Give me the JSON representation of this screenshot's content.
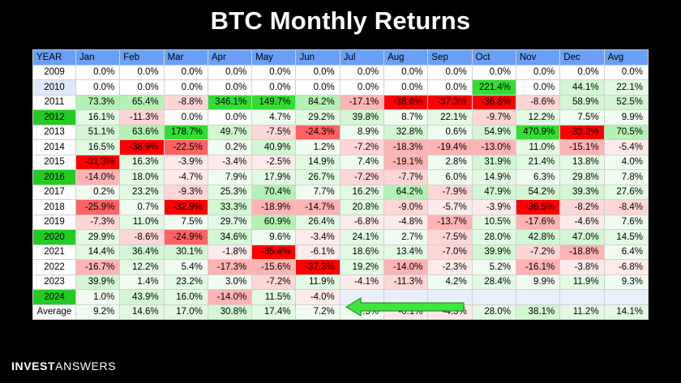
{
  "title": "BTC Monthly Returns",
  "footer": {
    "bold": "INVEST",
    "normal": "ANSWERS"
  },
  "colors": {
    "header_bg": "#6aa0f7",
    "highlight_year": "#22cc22",
    "light_blue_year": "#dde9f8",
    "empty_cell": "#e9f0fb",
    "arrow": "#3ee63e"
  },
  "chart_data": {
    "type": "table",
    "columns": [
      "YEAR",
      "Jan",
      "Feb",
      "Mar",
      "Apr",
      "May",
      "Jun",
      "Jul",
      "Aug",
      "Sep",
      "Oct",
      "Nov",
      "Dec",
      "Avg"
    ],
    "rows": [
      {
        "year": "2009",
        "year_style": "plain",
        "cells": [
          "0.0%",
          "0.0%",
          "0.0%",
          "0.0%",
          "0.0%",
          "0.0%",
          "0.0%",
          "0.0%",
          "0.0%",
          "0.0%",
          "0.0%",
          "0.0%",
          "0.0%"
        ]
      },
      {
        "year": "2010",
        "year_style": "light",
        "cells": [
          "0.0%",
          "0.0%",
          "0.0%",
          "0.0%",
          "0.0%",
          "0.0%",
          "0.0%",
          "0.0%",
          "0.0%",
          "221.4%",
          "0.0%",
          "44.1%",
          "22.1%"
        ]
      },
      {
        "year": "2011",
        "year_style": "plain",
        "cells": [
          "73.3%",
          "65.4%",
          "-8.8%",
          "346.1%",
          "149.7%",
          "84.2%",
          "-17.1%",
          "-38.6%",
          "-37.3%",
          "-36.8%",
          "-8.6%",
          "58.9%",
          "52.5%"
        ]
      },
      {
        "year": "2012",
        "year_style": "green",
        "cells": [
          "16.1%",
          "-11.3%",
          "0.0%",
          "0.0%",
          "4.7%",
          "29.2%",
          "39.8%",
          "8.7%",
          "22.1%",
          "-9.7%",
          "12.2%",
          "7.5%",
          "9.9%"
        ]
      },
      {
        "year": "2013",
        "year_style": "plain",
        "cells": [
          "51.1%",
          "63.6%",
          "178.7%",
          "49.7%",
          "-7.5%",
          "-24.3%",
          "8.9%",
          "32.8%",
          "0.6%",
          "54.9%",
          "470.9%",
          "-33.2%",
          "70.5%"
        ]
      },
      {
        "year": "2014",
        "year_style": "plain",
        "cells": [
          "16.5%",
          "-38.9%",
          "-22.5%",
          "0.2%",
          "40.9%",
          "1.2%",
          "-7.2%",
          "-18.3%",
          "-19.4%",
          "-13.0%",
          "11.0%",
          "-15.1%",
          "-5.4%"
        ]
      },
      {
        "year": "2015",
        "year_style": "plain",
        "cells": [
          "-31.3%",
          "16.3%",
          "-3.9%",
          "-3.4%",
          "-2.5%",
          "14.9%",
          "7.4%",
          "-19.1%",
          "2.8%",
          "31.9%",
          "21.4%",
          "13.8%",
          "4.0%"
        ]
      },
      {
        "year": "2016",
        "year_style": "green",
        "cells": [
          "-14.0%",
          "18.0%",
          "-4.7%",
          "7.9%",
          "17.9%",
          "26.7%",
          "-7.2%",
          "-7.7%",
          "6.0%",
          "14.9%",
          "6.3%",
          "29.8%",
          "7.8%"
        ]
      },
      {
        "year": "2017",
        "year_style": "plain",
        "cells": [
          "0.2%",
          "23.2%",
          "-9.3%",
          "25.3%",
          "70.4%",
          "7.7%",
          "16.2%",
          "64.2%",
          "-7.9%",
          "47.9%",
          "54.2%",
          "39.3%",
          "27.6%"
        ]
      },
      {
        "year": "2018",
        "year_style": "plain",
        "cells": [
          "-25.9%",
          "0.7%",
          "-32.9%",
          "33.3%",
          "-18.9%",
          "-14.7%",
          "20.8%",
          "-9.0%",
          "-5.7%",
          "-3.9%",
          "-36.5%",
          "-8.2%",
          "-8.4%"
        ]
      },
      {
        "year": "2019",
        "year_style": "plain",
        "cells": [
          "-7.3%",
          "11.0%",
          "7.5%",
          "29.7%",
          "60.9%",
          "26.4%",
          "-6.8%",
          "-4.8%",
          "-13.7%",
          "10.5%",
          "-17.6%",
          "-4.6%",
          "7.6%"
        ]
      },
      {
        "year": "2020",
        "year_style": "green",
        "cells": [
          "29.9%",
          "-8.6%",
          "-24.9%",
          "34.6%",
          "9.6%",
          "-3.4%",
          "24.1%",
          "2.7%",
          "-7.5%",
          "28.0%",
          "42.8%",
          "47.0%",
          "14.5%"
        ]
      },
      {
        "year": "2021",
        "year_style": "plain",
        "cells": [
          "14.4%",
          "36.4%",
          "30.1%",
          "-1.8%",
          "-35.4%",
          "-6.1%",
          "18.6%",
          "13.4%",
          "-7.0%",
          "39.9%",
          "-7.2%",
          "-18.8%",
          "6.4%"
        ]
      },
      {
        "year": "2022",
        "year_style": "plain",
        "cells": [
          "-16.7%",
          "12.2%",
          "5.4%",
          "-17.3%",
          "-15.6%",
          "-37.3%",
          "19.2%",
          "-14.0%",
          "-2.3%",
          "5.2%",
          "-16.1%",
          "-3.8%",
          "-6.8%"
        ]
      },
      {
        "year": "2023",
        "year_style": "plain",
        "cells": [
          "39.9%",
          "1.4%",
          "23.2%",
          "3.0%",
          "-7.2%",
          "11.9%",
          "-4.1%",
          "-11.3%",
          "4.2%",
          "28.4%",
          "9.9%",
          "11.9%",
          "9.3%"
        ]
      },
      {
        "year": "2024",
        "year_style": "green",
        "cells": [
          "1.0%",
          "43.9%",
          "16.0%",
          "-14.0%",
          "11.5%",
          "-4.0%",
          "",
          "",
          "",
          "",
          "",
          "",
          ""
        ]
      },
      {
        "year": "Average",
        "year_style": "plain",
        "cells": [
          "9.2%",
          "14.6%",
          "17.0%",
          "30.8%",
          "17.4%",
          "7.2%",
          "7.5%",
          "-0.1%",
          "-4.3%",
          "28.0%",
          "38.1%",
          "11.2%",
          "14.1%"
        ]
      }
    ],
    "annotations": [
      {
        "type": "arrow",
        "row": "2024",
        "from_month": "Sep",
        "to_month": "Jul",
        "direction": "left",
        "color": "#3ee63e"
      }
    ]
  }
}
